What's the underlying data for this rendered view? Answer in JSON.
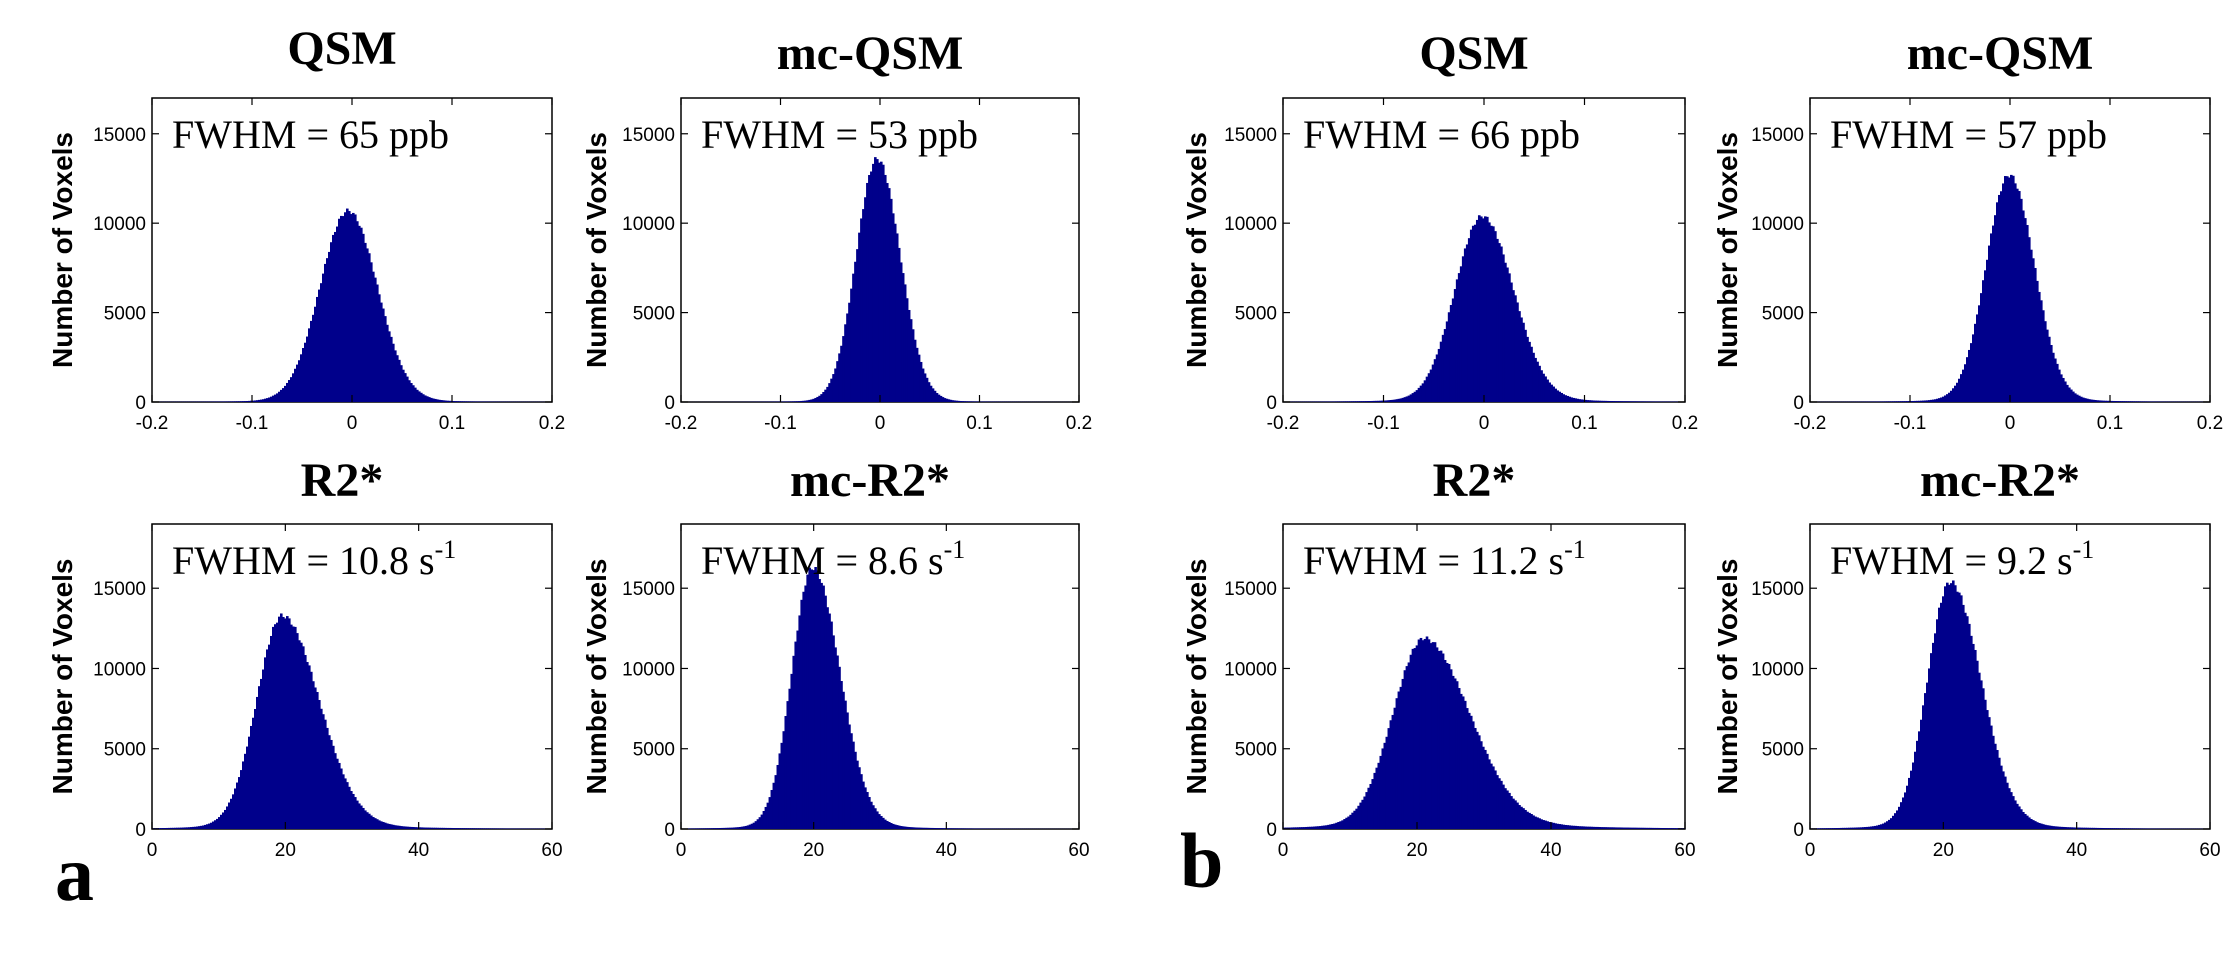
{
  "colors": {
    "bars": "#00008b",
    "axes": "#000000",
    "background": "#ffffff"
  },
  "panel_labels": [
    "a",
    "b"
  ],
  "y_axis_label": "Number of Voxels",
  "chart_data": [
    {
      "type": "bar",
      "panel": "a",
      "title": "QSM",
      "annotation": "FWHM = 65 ppb",
      "annotation_sup": "",
      "ylabel": "Number of Voxels",
      "xlim": [
        -0.2,
        0.2
      ],
      "ylim": [
        0,
        17000
      ],
      "xticks": [
        "-0.2",
        "-0.1",
        "0",
        "0.1",
        "0.2"
      ],
      "yticks": [
        "0",
        "5000",
        "10000",
        "15000"
      ],
      "distribution": {
        "peak_x": -0.004,
        "peak_count": 10700,
        "sigma_left": 0.028,
        "sigma_right": 0.029,
        "tail": 0.02
      }
    },
    {
      "type": "bar",
      "panel": "a",
      "title": "mc-QSM",
      "annotation": "FWHM = 53 ppb",
      "annotation_sup": "",
      "ylabel": "Number of Voxels",
      "xlim": [
        -0.2,
        0.2
      ],
      "ylim": [
        0,
        17000
      ],
      "xticks": [
        "-0.2",
        "-0.1",
        "0",
        "0.1",
        "0.2"
      ],
      "yticks": [
        "0",
        "5000",
        "10000",
        "15000"
      ],
      "distribution": {
        "peak_x": -0.003,
        "peak_count": 13600,
        "sigma_left": 0.021,
        "sigma_right": 0.023,
        "tail": 0.015
      }
    },
    {
      "type": "bar",
      "panel": "b",
      "title": "QSM",
      "annotation": "FWHM = 66 ppb",
      "annotation_sup": "",
      "ylabel": "Number of Voxels",
      "xlim": [
        -0.2,
        0.2
      ],
      "ylim": [
        0,
        17000
      ],
      "xticks": [
        "-0.2",
        "-0.1",
        "0",
        "0.1",
        "0.2"
      ],
      "yticks": [
        "0",
        "5000",
        "10000",
        "15000"
      ],
      "distribution": {
        "peak_x": -0.002,
        "peak_count": 10400,
        "sigma_left": 0.027,
        "sigma_right": 0.031,
        "tail": 0.035
      }
    },
    {
      "type": "bar",
      "panel": "b",
      "title": "mc-QSM",
      "annotation": "FWHM = 57 ppb",
      "annotation_sup": "",
      "ylabel": "Number of Voxels",
      "xlim": [
        -0.2,
        0.2
      ],
      "ylim": [
        0,
        17000
      ],
      "xticks": [
        "-0.2",
        "-0.1",
        "0",
        "0.1",
        "0.2"
      ],
      "yticks": [
        "0",
        "5000",
        "10000",
        "15000"
      ],
      "distribution": {
        "peak_x": -0.001,
        "peak_count": 12700,
        "sigma_left": 0.023,
        "sigma_right": 0.025,
        "tail": 0.03
      }
    },
    {
      "type": "bar",
      "panel": "a",
      "title": "R2*",
      "annotation": "FWHM = 10.8 s",
      "annotation_sup": "-1",
      "ylabel": "Number of Voxels",
      "xlim": [
        0,
        60
      ],
      "ylim": [
        0,
        19000
      ],
      "xticks": [
        "0",
        "20",
        "40",
        "60"
      ],
      "yticks": [
        "0",
        "5000",
        "10000",
        "15000"
      ],
      "distribution": {
        "peak_x": 19.5,
        "peak_count": 13300,
        "sigma_left": 3.8,
        "sigma_right": 5.5,
        "tail": 0.04
      }
    },
    {
      "type": "bar",
      "panel": "a",
      "title": "mc-R2*",
      "annotation": "FWHM = 8.6 s",
      "annotation_sup": "-1",
      "ylabel": "Number of Voxels",
      "xlim": [
        0,
        60
      ],
      "ylim": [
        0,
        19000
      ],
      "xticks": [
        "0",
        "20",
        "40",
        "60"
      ],
      "yticks": [
        "0",
        "5000",
        "10000",
        "15000"
      ],
      "distribution": {
        "peak_x": 19.8,
        "peak_count": 16300,
        "sigma_left": 3.1,
        "sigma_right": 4.1,
        "tail": 0.03
      }
    },
    {
      "type": "bar",
      "panel": "b",
      "title": "R2*",
      "annotation": "FWHM = 11.2 s",
      "annotation_sup": "-1",
      "ylabel": "Number of Voxels",
      "xlim": [
        0,
        60
      ],
      "ylim": [
        0,
        19000
      ],
      "xticks": [
        "0",
        "20",
        "40",
        "60"
      ],
      "yticks": [
        "0",
        "5000",
        "10000",
        "15000"
      ],
      "distribution": {
        "peak_x": 21.0,
        "peak_count": 11900,
        "sigma_left": 4.6,
        "sigma_right": 6.8,
        "tail": 0.06
      }
    },
    {
      "type": "bar",
      "panel": "b",
      "title": "mc-R2*",
      "annotation": "FWHM = 9.2 s",
      "annotation_sup": "-1",
      "ylabel": "Number of Voxels",
      "xlim": [
        0,
        60
      ],
      "ylim": [
        0,
        19000
      ],
      "xticks": [
        "0",
        "20",
        "40",
        "60"
      ],
      "yticks": [
        "0",
        "5000",
        "10000",
        "15000"
      ],
      "distribution": {
        "peak_x": 21.0,
        "peak_count": 15400,
        "sigma_left": 3.4,
        "sigma_right": 4.6,
        "tail": 0.04
      }
    }
  ]
}
